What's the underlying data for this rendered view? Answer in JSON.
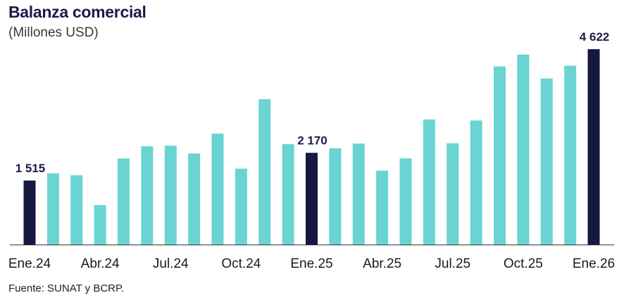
{
  "title": "Balanza comercial",
  "subtitle": "(Millones USD)",
  "source": "Fuente: SUNAT y BCRP.",
  "colors": {
    "regular": "#6ad4d2",
    "highlight": "#161743",
    "axis": "#333333"
  },
  "chart_data": {
    "type": "bar",
    "categories": [
      "Ene.24",
      "Feb.24",
      "Mar.24",
      "Abr.24",
      "May.24",
      "Jun.24",
      "Jul.24",
      "Ago.24",
      "Set.24",
      "Oct.24",
      "Nov.24",
      "Dic.24",
      "Ene.25",
      "Feb.25",
      "Mar.25",
      "Abr.25",
      "May.25",
      "Jun.25",
      "Jul.25",
      "Ago.25",
      "Set.25",
      "Oct.25",
      "Nov.25",
      "Dic.25",
      "Ene.26"
    ],
    "values": [
      1515,
      1685,
      1640,
      935,
      2035,
      2325,
      2340,
      2155,
      2625,
      1795,
      3440,
      2375,
      2170,
      2280,
      2390,
      1750,
      2040,
      2960,
      2395,
      2935,
      4215,
      4495,
      3930,
      4230,
      4622
    ],
    "highlighted_indices": [
      0,
      12,
      24
    ],
    "data_labels": [
      {
        "index": 0,
        "text": "1 515"
      },
      {
        "index": 12,
        "text": "2 170"
      },
      {
        "index": 24,
        "text": "4 622"
      }
    ],
    "tick_labels": [
      {
        "index": 0,
        "text": "Ene.24"
      },
      {
        "index": 3,
        "text": "Abr.24"
      },
      {
        "index": 6,
        "text": "Jul.24"
      },
      {
        "index": 9,
        "text": "Oct.24"
      },
      {
        "index": 12,
        "text": "Ene.25"
      },
      {
        "index": 15,
        "text": "Abr.25"
      },
      {
        "index": 18,
        "text": "Jul.25"
      },
      {
        "index": 21,
        "text": "Oct.25"
      },
      {
        "index": 24,
        "text": "Ene.26"
      }
    ],
    "title": "Balanza comercial",
    "subtitle": "(Millones USD)",
    "ylim": [
      0,
      4622
    ],
    "grid": false,
    "legend": "none"
  }
}
